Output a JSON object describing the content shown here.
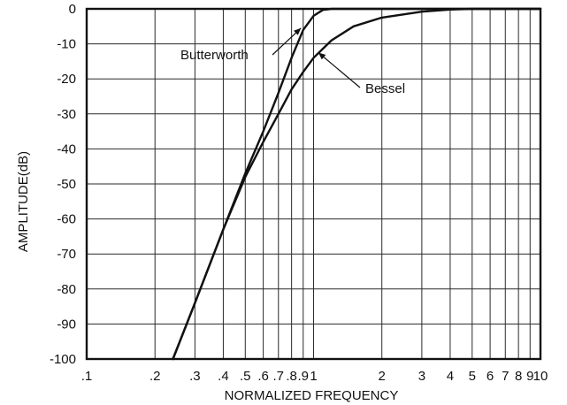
{
  "chart_data": {
    "type": "line",
    "title": "",
    "xlabel": "NORMALIZED FREQUENCY",
    "ylabel": "AMPLITUDE(dB)",
    "x_scale": "log",
    "xlim": [
      0.1,
      10
    ],
    "ylim": [
      -100,
      0
    ],
    "grid": true,
    "x_ticks": [
      {
        "value": 0.1,
        "label": ".1"
      },
      {
        "value": 0.2,
        "label": ".2"
      },
      {
        "value": 0.3,
        "label": ".3"
      },
      {
        "value": 0.4,
        "label": ".4"
      },
      {
        "value": 0.5,
        "label": ".5"
      },
      {
        "value": 0.6,
        "label": ".6"
      },
      {
        "value": 0.7,
        "label": ".7"
      },
      {
        "value": 0.8,
        "label": ".8"
      },
      {
        "value": 0.9,
        "label": ".9"
      },
      {
        "value": 1,
        "label": "1"
      },
      {
        "value": 2,
        "label": "2"
      },
      {
        "value": 3,
        "label": "3"
      },
      {
        "value": 4,
        "label": "4"
      },
      {
        "value": 5,
        "label": "5"
      },
      {
        "value": 6,
        "label": "6"
      },
      {
        "value": 7,
        "label": "7"
      },
      {
        "value": 8,
        "label": "8"
      },
      {
        "value": 9,
        "label": "9"
      },
      {
        "value": 10,
        "label": "10"
      }
    ],
    "y_ticks": [
      {
        "value": 0,
        "label": "0"
      },
      {
        "value": -10,
        "label": "-10"
      },
      {
        "value": -20,
        "label": "-20"
      },
      {
        "value": -30,
        "label": "-30"
      },
      {
        "value": -40,
        "label": "-40"
      },
      {
        "value": -50,
        "label": "-50"
      },
      {
        "value": -60,
        "label": "-60"
      },
      {
        "value": -70,
        "label": "-70"
      },
      {
        "value": -80,
        "label": "-80"
      },
      {
        "value": -90,
        "label": "-90"
      },
      {
        "value": -100,
        "label": "-100"
      }
    ],
    "series": [
      {
        "name": "Butterworth",
        "x": [
          0.24,
          0.3,
          0.4,
          0.5,
          0.6,
          0.7,
          0.8,
          0.9,
          1.0,
          1.1,
          1.2,
          1.5,
          2,
          3,
          5,
          10
        ],
        "y": [
          -100,
          -84,
          -63,
          -47,
          -35,
          -24,
          -14,
          -6,
          -2,
          -0.3,
          0,
          0,
          0,
          0,
          0,
          0
        ]
      },
      {
        "name": "Bessel",
        "x": [
          0.24,
          0.3,
          0.4,
          0.5,
          0.6,
          0.7,
          0.8,
          0.9,
          1.0,
          1.2,
          1.5,
          2,
          3,
          4,
          5,
          10
        ],
        "y": [
          -100,
          -84,
          -63,
          -48,
          -38,
          -30,
          -23,
          -18,
          -14,
          -9,
          -5,
          -2.5,
          -0.8,
          -0.2,
          0,
          0
        ]
      }
    ],
    "annotations": [
      {
        "text": "Butterworth",
        "series": "Butterworth",
        "points_to": {
          "x": 0.88,
          "y": -5.5
        }
      },
      {
        "text": "Bessel",
        "series": "Bessel",
        "points_to": {
          "x": 1.05,
          "y": -12.5
        }
      }
    ]
  }
}
